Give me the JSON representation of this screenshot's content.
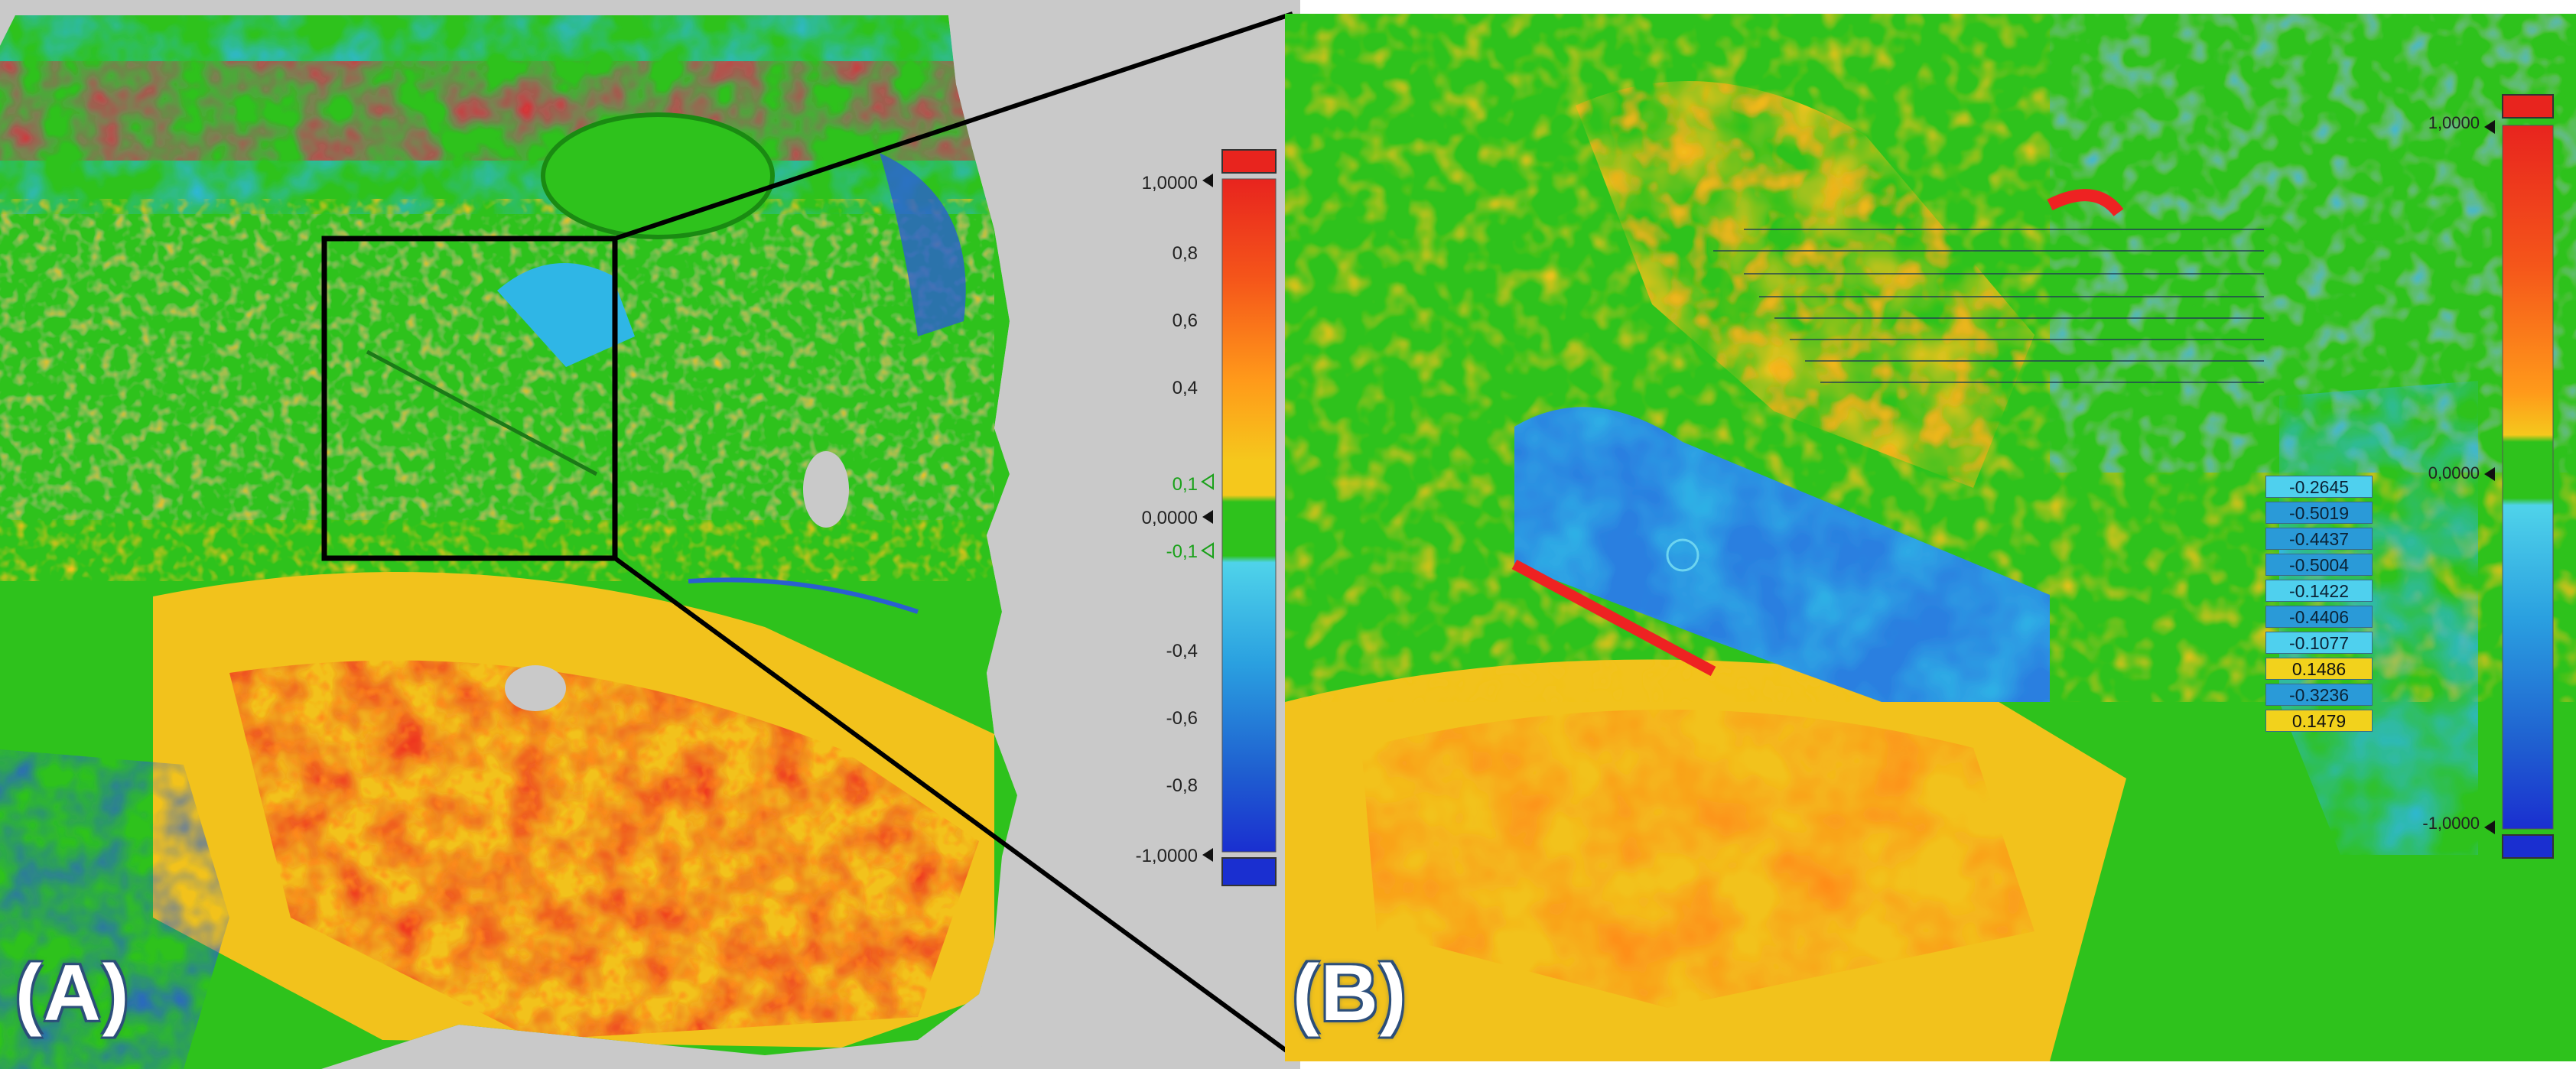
{
  "panels": {
    "a": {
      "label": "(A)"
    },
    "b": {
      "label": "(B)"
    }
  },
  "colors": {
    "red": "#ee2222",
    "orange": "#ff8a1a",
    "yellow": "#f2c21c",
    "green": "#2ec21c",
    "cyan": "#2fb6e6",
    "blue": "#2a5fd0",
    "background_gray": "#c9c9c9"
  },
  "scale_a": {
    "ticks": [
      "1,0000",
      "0,8",
      "0,6",
      "0,4",
      "0,1",
      "0,0000",
      "-0,1",
      "-0,4",
      "-0,6",
      "-0,8",
      "-1,0000"
    ]
  },
  "scale_b": {
    "ticks": [
      "1,0000",
      "0,0000",
      "-1,0000"
    ]
  },
  "measurements": [
    {
      "value": "-0.2645",
      "kind": "cyan"
    },
    {
      "value": "-0.5019",
      "kind": "blue"
    },
    {
      "value": "-0.4437",
      "kind": "blue"
    },
    {
      "value": "-0.5004",
      "kind": "blue"
    },
    {
      "value": "-0.1422",
      "kind": "cyan"
    },
    {
      "value": "-0.4406",
      "kind": "blue"
    },
    {
      "value": "-0.1077",
      "kind": "cyan"
    },
    {
      "value": "0.1486",
      "kind": "yellow"
    },
    {
      "value": "-0.3236",
      "kind": "blue"
    },
    {
      "value": "0.1479",
      "kind": "yellow"
    }
  ]
}
